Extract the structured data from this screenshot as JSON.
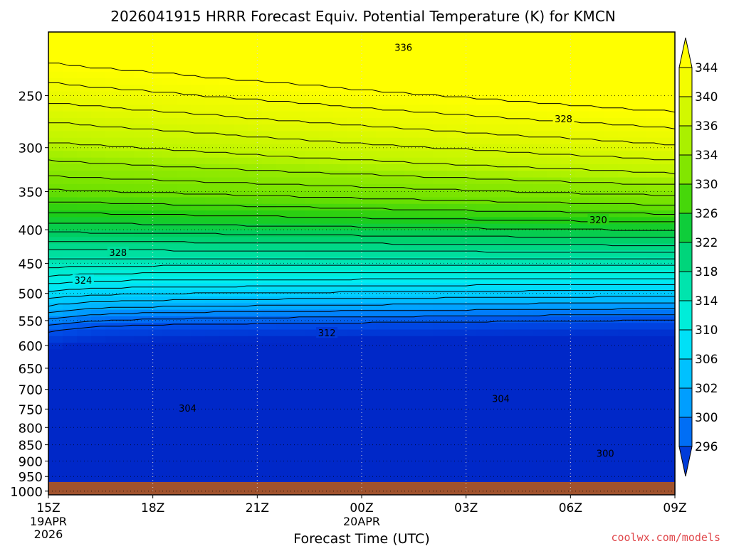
{
  "chart_data": {
    "type": "contour",
    "title": "2026041915 HRRR Forecast Equiv. Potential Temperature (K) for KMCN",
    "xlabel": "Forecast Time (UTC)",
    "ylabel": "",
    "x_ticks": [
      {
        "label": "15Z",
        "sub": [
          "19APR",
          "2026"
        ]
      },
      {
        "label": "18Z",
        "sub": []
      },
      {
        "label": "21Z",
        "sub": []
      },
      {
        "label": "00Z",
        "sub": [
          "20APR"
        ]
      },
      {
        "label": "03Z",
        "sub": []
      },
      {
        "label": "06Z",
        "sub": []
      },
      {
        "label": "09Z",
        "sub": []
      }
    ],
    "x_hours": [
      0,
      3,
      6,
      9,
      12,
      15,
      18
    ],
    "xlim_hours": [
      0,
      18
    ],
    "y_ticks": [
      250,
      300,
      350,
      400,
      450,
      500,
      550,
      600,
      650,
      700,
      750,
      800,
      850,
      900,
      950,
      1000
    ],
    "ylim": [
      200,
      1013
    ],
    "y_scale": "log-pressure",
    "colorbar_levels": [
      296,
      300,
      302,
      306,
      310,
      314,
      318,
      322,
      326,
      330,
      334,
      336,
      340,
      344
    ],
    "contour_labels": [
      {
        "text": "336",
        "hour": 10.2,
        "p": 211
      },
      {
        "text": "328",
        "hour": 14.8,
        "p": 271
      },
      {
        "text": "320",
        "hour": 15.8,
        "p": 386
      },
      {
        "text": "328",
        "hour": 2.0,
        "p": 433
      },
      {
        "text": "324",
        "hour": 1.0,
        "p": 477
      },
      {
        "text": "312",
        "hour": 8.0,
        "p": 574
      },
      {
        "text": "304",
        "hour": 13.0,
        "p": 723
      },
      {
        "text": "304",
        "hour": 4.0,
        "p": 747
      },
      {
        "text": "300",
        "hour": 16.0,
        "p": 876
      }
    ],
    "grid": true,
    "legend": "colorbar-right"
  },
  "credit": "coolwx.com/models",
  "colors": {
    "ground": "#a0522d",
    "background": "#ffffff"
  }
}
